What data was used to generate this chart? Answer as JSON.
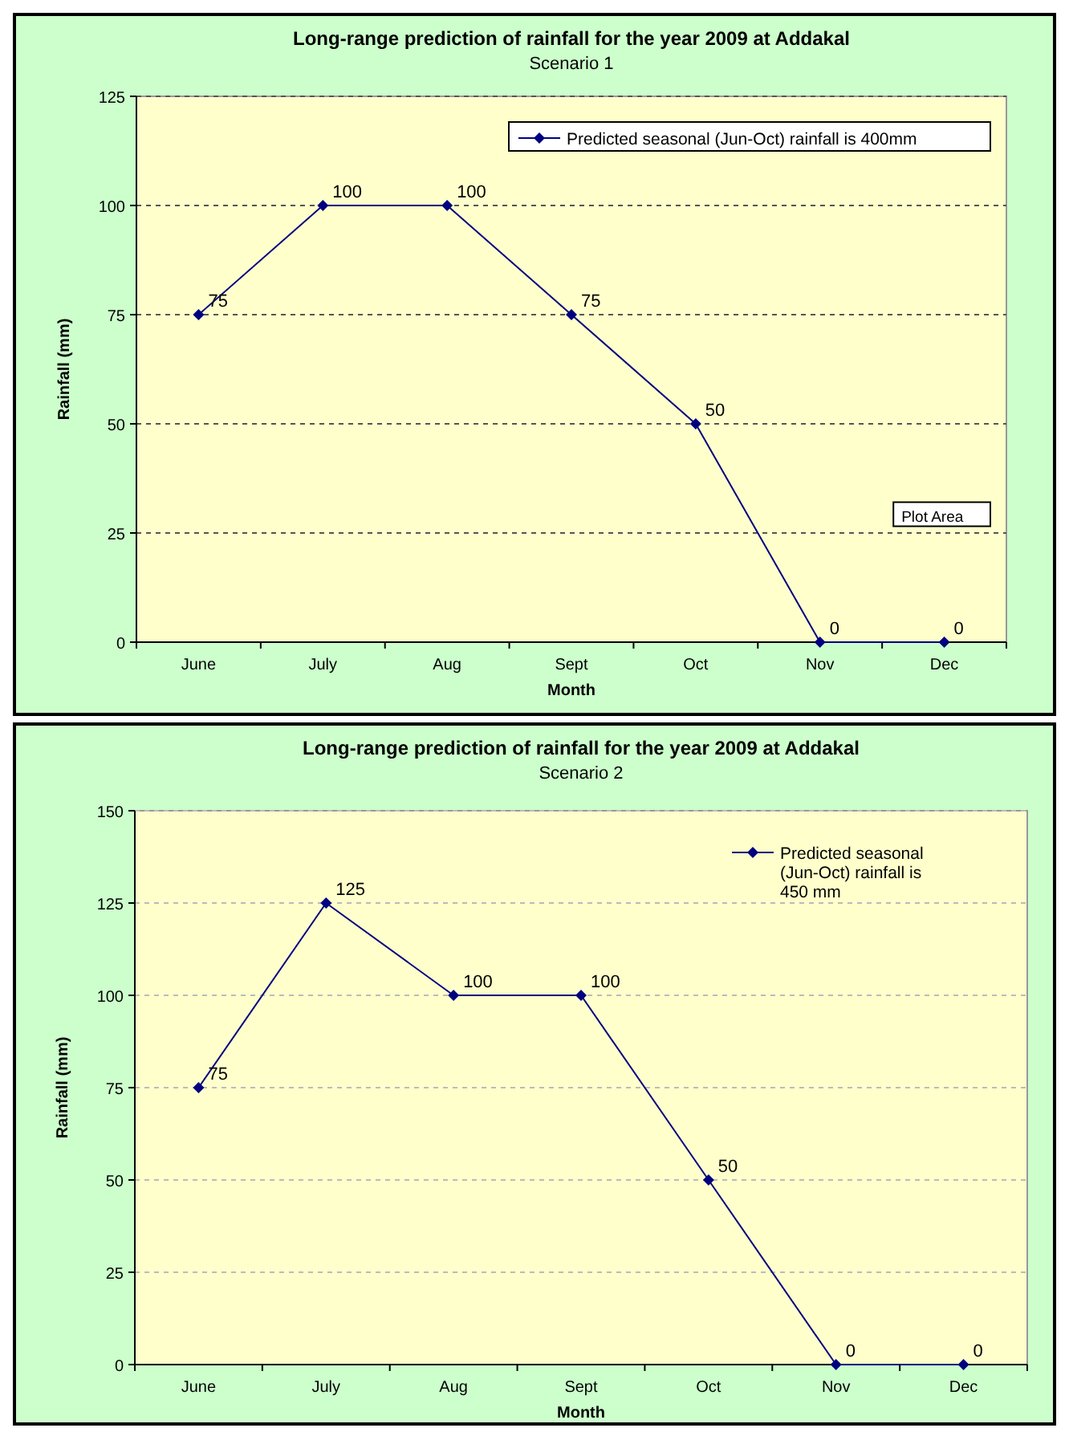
{
  "chart_data": [
    {
      "type": "line",
      "title": "Long-range prediction of rainfall for the year 2009 at Addakal",
      "subtitle": "Scenario 1",
      "xlabel": "Month",
      "ylabel": "Rainfall (mm)",
      "categories": [
        "June",
        "July",
        "Aug",
        "Sept",
        "Oct",
        "Nov",
        "Dec"
      ],
      "series": [
        {
          "name": "Predicted seasonal (Jun-Oct) rainfall is 400mm",
          "color": "#000080",
          "values": [
            75,
            100,
            100,
            75,
            50,
            0,
            0
          ]
        }
      ],
      "ylim": [
        0,
        125
      ],
      "yticks": [
        0,
        25,
        50,
        75,
        100,
        125
      ],
      "grid": "y",
      "legend": "top right",
      "marker": "diamond",
      "data_labels": true,
      "annotations": [
        "Plot Area"
      ]
    },
    {
      "type": "line",
      "title": "Long-range prediction of rainfall for the year 2009 at Addakal",
      "subtitle": "Scenario 2",
      "xlabel": "Month",
      "ylabel": "Rainfall (mm)",
      "categories": [
        "June",
        "July",
        "Aug",
        "Sept",
        "Oct",
        "Nov",
        "Dec"
      ],
      "series": [
        {
          "name": "Predicted seasonal (Jun-Oct) rainfall is 450 mm",
          "color": "#000080",
          "values": [
            75,
            125,
            100,
            100,
            50,
            0,
            0
          ]
        }
      ],
      "ylim": [
        0,
        150
      ],
      "yticks": [
        0,
        25,
        50,
        75,
        100,
        125,
        150
      ],
      "grid": "y",
      "legend": "top right",
      "marker": "diamond",
      "data_labels": true
    }
  ]
}
